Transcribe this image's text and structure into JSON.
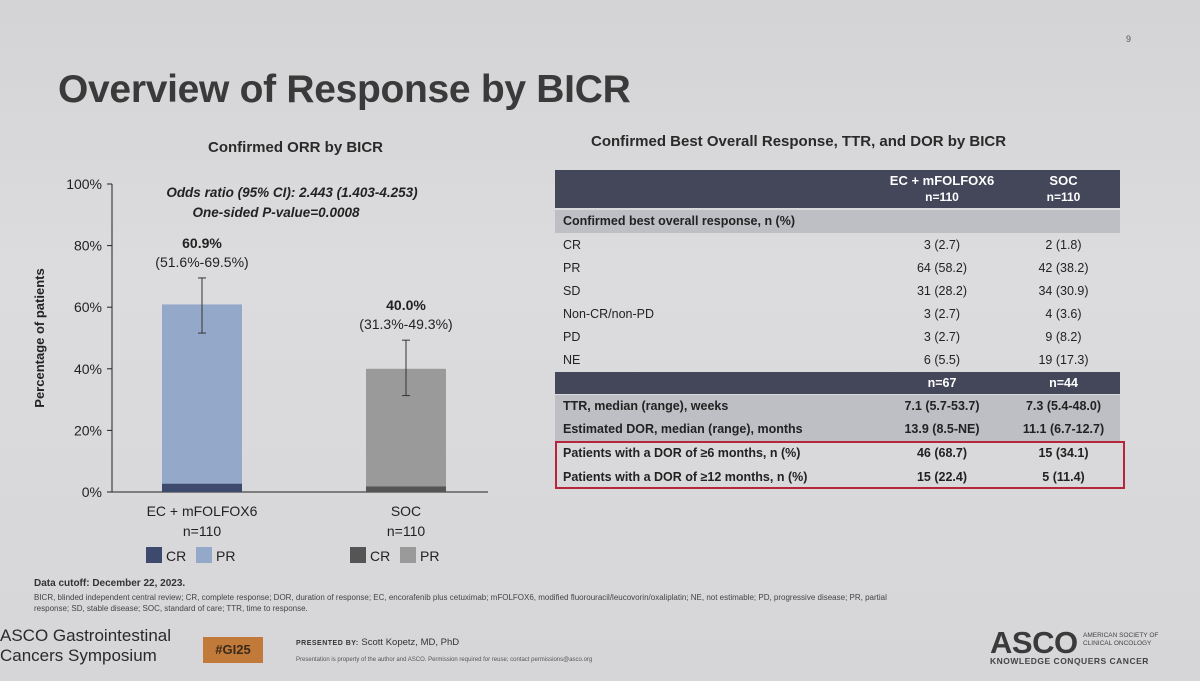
{
  "slide": {
    "page_number": "9",
    "title": "Overview of Response by BICR"
  },
  "chart_data": {
    "type": "bar",
    "title": "Confirmed ORR by BICR",
    "ylabel": "Percentage of patients",
    "ylim": [
      0,
      100
    ],
    "yticks": [
      "0%",
      "20%",
      "40%",
      "60%",
      "80%",
      "100%"
    ],
    "annotation_line1": "Odds ratio (95% CI): 2.443 (1.403-4.253)",
    "annotation_line2": "One-sided P-value=0.0008",
    "categories": [
      "EC + mFOLFOX6",
      "SOC"
    ],
    "category_n": [
      "n=110",
      "n=110"
    ],
    "series": [
      {
        "name": "CR",
        "values": [
          2.7,
          1.8
        ]
      },
      {
        "name": "PR",
        "values": [
          58.2,
          38.2
        ]
      }
    ],
    "totals": [
      60.9,
      40.0
    ],
    "ci_low": [
      51.6,
      31.3
    ],
    "ci_high": [
      69.5,
      49.3
    ],
    "value_labels": [
      "60.9%",
      "40.0%"
    ],
    "ci_labels": [
      "(51.6%-69.5%)",
      "(31.3%-49.3%)"
    ],
    "legend": [
      "CR",
      "PR"
    ],
    "colors": {
      "ec_cr": "#3d4a6e",
      "ec_pr": "#94a9c9",
      "soc_cr": "#555555",
      "soc_pr": "#9a9a9a"
    }
  },
  "table": {
    "title": "Confirmed Best Overall Response, TTR, and DOR by BICR",
    "col1_header": "EC + mFOLFOX6",
    "col1_n": "n=110",
    "col2_header": "SOC",
    "col2_n": "n=110",
    "section1": "Confirmed best overall response, n (%)",
    "rows": [
      {
        "label": "CR",
        "c1": "3 (2.7)",
        "c2": "2 (1.8)"
      },
      {
        "label": "PR",
        "c1": "64 (58.2)",
        "c2": "42 (38.2)"
      },
      {
        "label": "SD",
        "c1": "31 (28.2)",
        "c2": "34 (30.9)"
      },
      {
        "label": "Non-CR/non-PD",
        "c1": "3 (2.7)",
        "c2": "4 (3.6)"
      },
      {
        "label": "PD",
        "c1": "3 (2.7)",
        "c2": "9 (8.2)"
      },
      {
        "label": "NE",
        "c1": "6 (5.5)",
        "c2": "19 (17.3)"
      }
    ],
    "subheader_c1": "n=67",
    "subheader_c2": "n=44",
    "rows2": [
      {
        "label": "TTR, median (range), weeks",
        "c1": "7.1 (5.7-53.7)",
        "c2": "7.3 (5.4-48.0)"
      },
      {
        "label": "Estimated DOR, median (range), months",
        "c1": "13.9 (8.5-NE)",
        "c2": "11.1 (6.7-12.7)"
      },
      {
        "label": "Patients with a DOR of ≥6 months, n (%)",
        "c1": "46 (68.7)",
        "c2": "15 (34.1)"
      },
      {
        "label": "Patients with a DOR of ≥12 months, n (%)",
        "c1": "15 (22.4)",
        "c2": "5 (11.4)"
      }
    ]
  },
  "footer": {
    "cutoff": "Data cutoff: December 22, 2023.",
    "abbrev1": "BICR, blinded independent central review; CR, complete response; DOR, duration of response; EC, encorafenib plus cetuximab; mFOLFOX6, modified fluorouracil/leucovorin/oxaliplatin; NE, not estimable; PD, progressive disease; PR, partial",
    "abbrev2": "response; SD, stable disease; SOC, standard of care; TTR, time to response.",
    "asco_line1": "ASCO Gastrointestinal",
    "asco_line2": "Cancers Symposium",
    "hashtag": "#GI25",
    "presented_by": "PRESENTED BY:",
    "presenter": "Scott Kopetz, MD, PhD",
    "property": "Presentation is property of the author and ASCO. Permission required for reuse; contact permissions@asco.org",
    "asco_logo": "ASCO",
    "asco_society1": "AMERICAN SOCIETY OF",
    "asco_society2": "CLINICAL ONCOLOGY",
    "asco_tagline": "KNOWLEDGE CONQUERS CANCER"
  }
}
